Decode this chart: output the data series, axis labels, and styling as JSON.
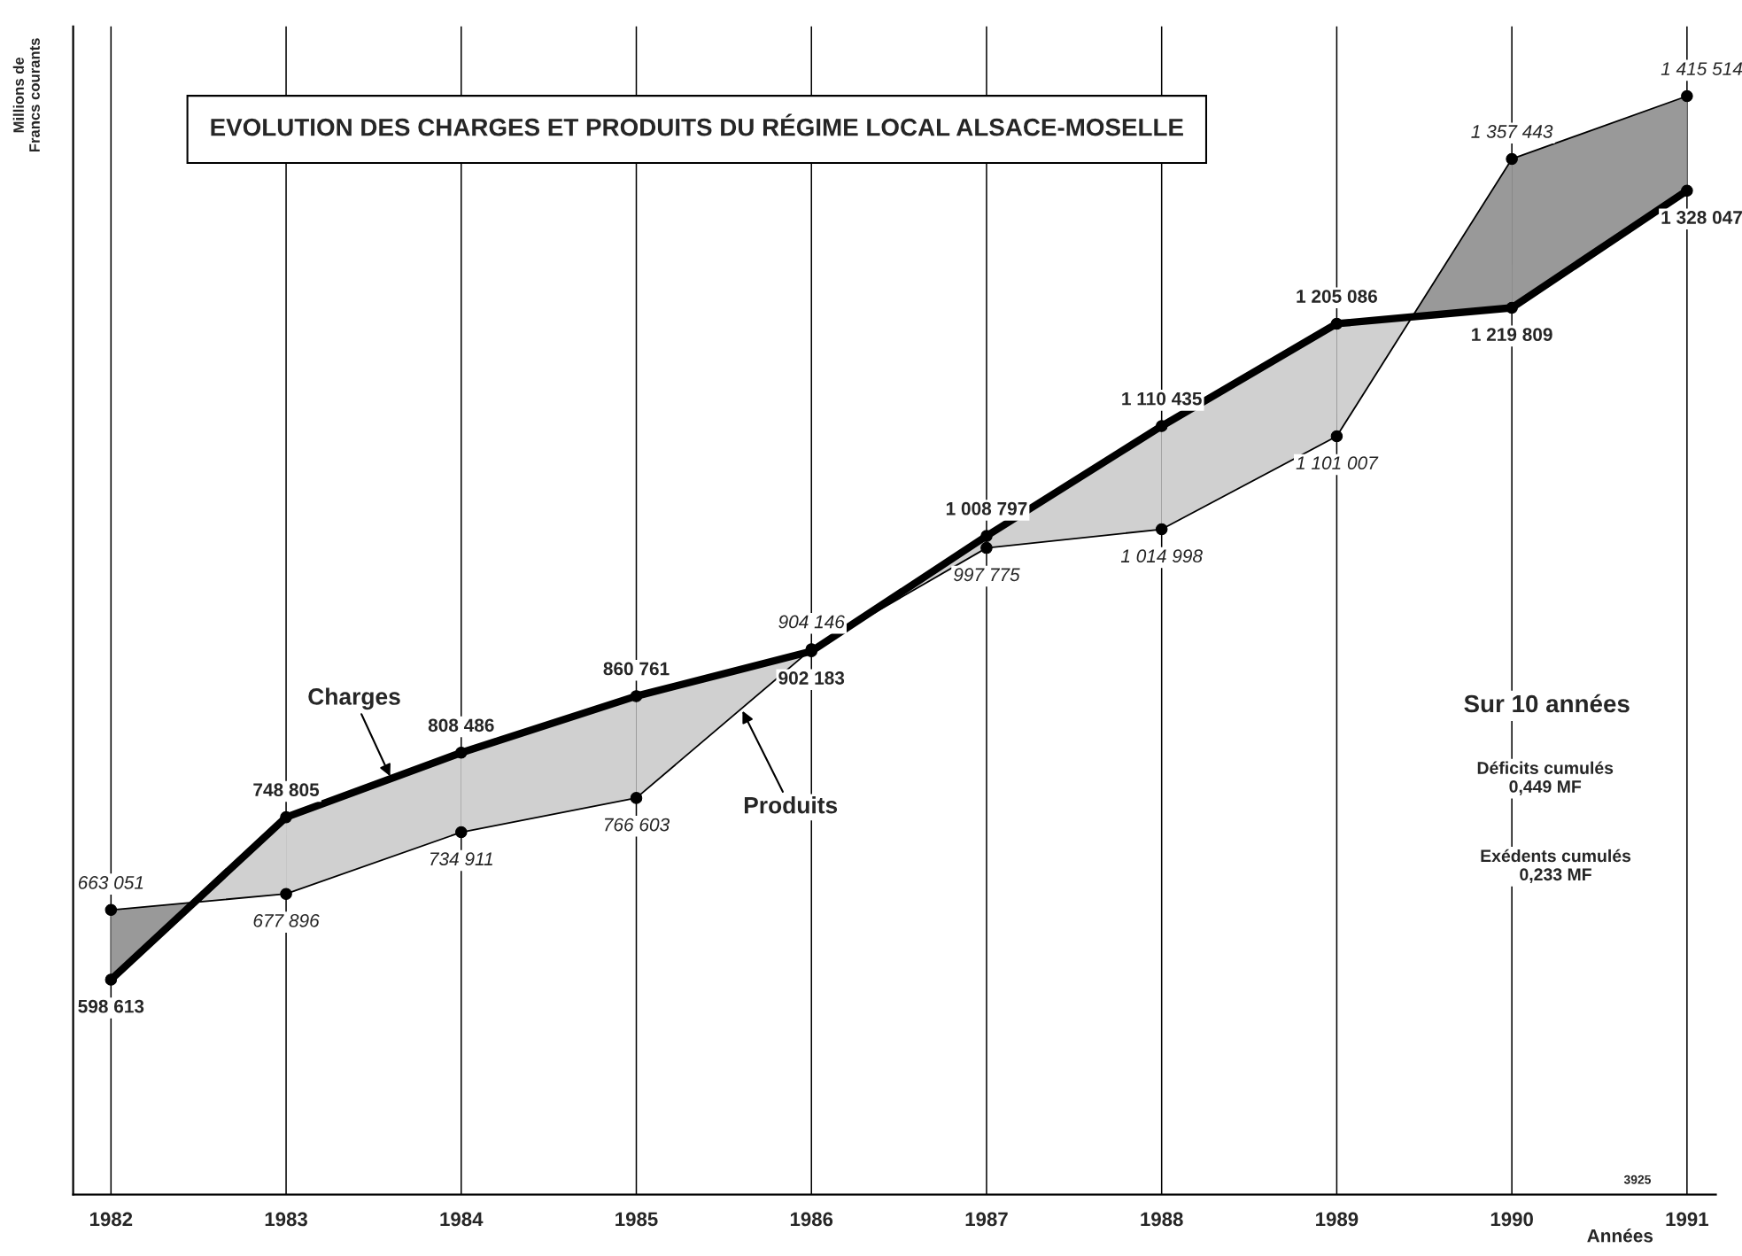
{
  "chart_data": {
    "type": "line",
    "title": "EVOLUTION DES CHARGES ET PRODUITS DU RÉGIME LOCAL ALSACE-MOSELLE",
    "ylabel": "Millions de\nFrancs courants",
    "xlabel": "Années",
    "categories": [
      "1982",
      "1983",
      "1984",
      "1985",
      "1986",
      "1987",
      "1988",
      "1989",
      "1990",
      "1991"
    ],
    "series": [
      {
        "name": "Charges",
        "color": "#000000",
        "values": [
          598613,
          748805,
          808486,
          860761,
          902183,
          1008797,
          1110435,
          1205086,
          1219809,
          1328047
        ],
        "value_labels": [
          "598 613",
          "748 805",
          "808 486",
          "860 761",
          "902 183",
          "1 008 797",
          "1 110 435",
          "1 205 086",
          "1 219 809",
          "1 328 047"
        ]
      },
      {
        "name": "Produits",
        "color": "#000000",
        "values": [
          663051,
          677896,
          734911,
          766603,
          904146,
          997775,
          1014998,
          1101007,
          1357443,
          1415514
        ],
        "value_labels": [
          "663 051",
          "677 896",
          "734 911",
          "766 603",
          "904 146",
          "997 775",
          "1 014 998",
          "1 101 007",
          "1 357 443",
          "1 415 514"
        ]
      }
    ],
    "ylim": [
      400000,
      1480000
    ],
    "grid": "x",
    "legend": false,
    "marker": "circle",
    "line_style": "solid",
    "annotations": [
      "Sur 10 années",
      "Déficits cumulés\n0,449 MF",
      "Exédents cumulés\n0,233 MF",
      "3925"
    ]
  }
}
